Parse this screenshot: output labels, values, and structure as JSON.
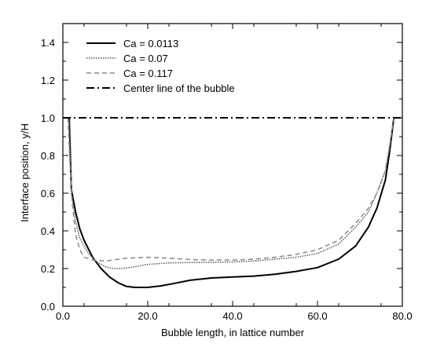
{
  "chart_data": {
    "type": "line",
    "title": "",
    "xlabel": "Bubble length, in lattice number",
    "ylabel": "Interface position, y/H",
    "xlim": [
      0,
      80
    ],
    "ylim": [
      0,
      1.5
    ],
    "x_ticks": [
      0,
      20,
      40,
      60,
      80
    ],
    "x_tick_labels": [
      "0.0",
      "20.0",
      "40.0",
      "60.0",
      "80.0"
    ],
    "y_ticks": [
      0,
      0.2,
      0.4,
      0.6,
      0.8,
      1.0,
      1.2,
      1.4
    ],
    "y_tick_labels": [
      "0.0",
      "0.2",
      "0.4",
      "0.6",
      "0.8",
      "1.0",
      "1.2",
      "1.4"
    ],
    "grid": false,
    "legend_position": "top-left",
    "series": [
      {
        "name": "Ca = 0.0113",
        "style": "solid",
        "color": "#000000",
        "x": [
          1.5,
          2,
          3,
          4,
          5,
          7,
          9,
          11,
          13,
          15,
          17,
          20,
          23,
          26,
          30,
          35,
          40,
          45,
          50,
          55,
          60,
          65,
          69,
          72,
          74,
          76,
          77,
          78
        ],
        "y": [
          1.0,
          0.62,
          0.5,
          0.41,
          0.35,
          0.26,
          0.2,
          0.155,
          0.125,
          0.105,
          0.1,
          0.1,
          0.108,
          0.12,
          0.138,
          0.15,
          0.155,
          0.16,
          0.17,
          0.185,
          0.205,
          0.25,
          0.32,
          0.42,
          0.52,
          0.67,
          0.82,
          1.0
        ]
      },
      {
        "name": "Ca = 0.07",
        "style": "dotted",
        "color": "#555555",
        "x": [
          1.5,
          2,
          3,
          4,
          6,
          8,
          10,
          12,
          14,
          17,
          20,
          25,
          30,
          35,
          40,
          45,
          50,
          55,
          60,
          65,
          69,
          72,
          74,
          76,
          77,
          78
        ],
        "y": [
          1.0,
          0.6,
          0.45,
          0.36,
          0.28,
          0.235,
          0.21,
          0.2,
          0.2,
          0.21,
          0.222,
          0.23,
          0.232,
          0.233,
          0.235,
          0.24,
          0.25,
          0.26,
          0.28,
          0.33,
          0.42,
          0.5,
          0.6,
          0.72,
          0.85,
          1.0
        ]
      },
      {
        "name": "Ca = 0.117",
        "style": "dashed",
        "color": "#888888",
        "x": [
          1.2,
          1.6,
          2.2,
          3,
          4,
          5,
          7,
          10,
          15,
          20,
          25,
          30,
          35,
          40,
          45,
          50,
          55,
          60,
          65,
          69,
          72,
          74,
          76,
          77,
          78
        ],
        "y": [
          1.0,
          0.8,
          0.55,
          0.38,
          0.3,
          0.26,
          0.245,
          0.24,
          0.255,
          0.26,
          0.255,
          0.248,
          0.245,
          0.245,
          0.25,
          0.26,
          0.275,
          0.3,
          0.35,
          0.44,
          0.52,
          0.6,
          0.72,
          0.85,
          1.0
        ]
      },
      {
        "name": "Center line of the bubble",
        "style": "dashdot",
        "color": "#000000",
        "x": [
          0,
          80
        ],
        "y": [
          1.0,
          1.0
        ]
      }
    ]
  }
}
